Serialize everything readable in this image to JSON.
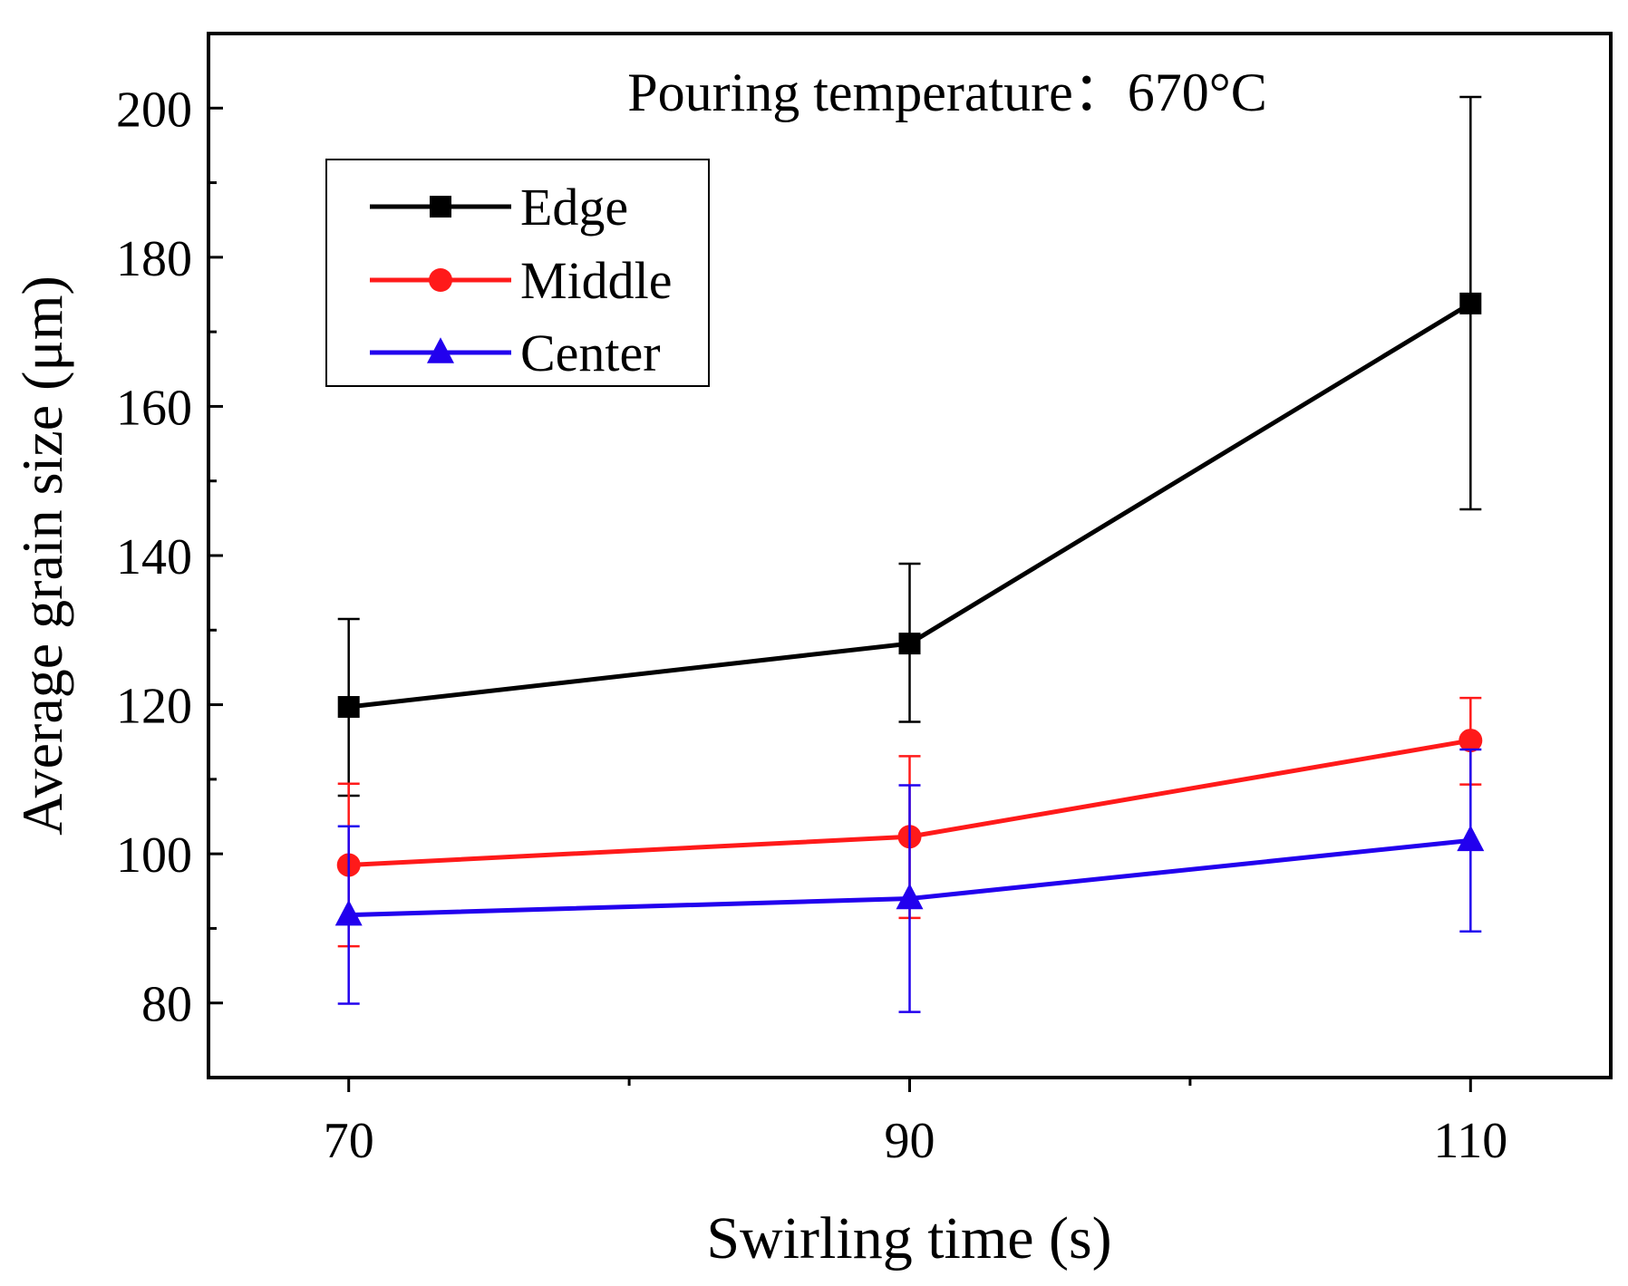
{
  "chart_data": {
    "type": "line",
    "title": "",
    "annotation": "Pouring temperature：670°C",
    "xlabel": "Swirling time (s)",
    "ylabel": "Average grain size (μm)",
    "x": [
      70,
      90,
      110
    ],
    "xlim": [
      65,
      115
    ],
    "ylim": [
      70,
      210
    ],
    "xticks": [
      70,
      90,
      110
    ],
    "yticks": [
      80,
      100,
      120,
      140,
      160,
      180,
      200
    ],
    "grid": false,
    "legend_position": "top-left",
    "series": [
      {
        "name": "Edge",
        "color": "#000000",
        "marker": "square",
        "values": [
          119.7,
          128.2,
          173.8
        ],
        "error_low": [
          107.8,
          117.7,
          146.2
        ],
        "error_high": [
          131.5,
          138.9,
          201.5
        ]
      },
      {
        "name": "Middle",
        "color": "#ff1a1a",
        "marker": "circle",
        "values": [
          98.5,
          102.3,
          115.2
        ],
        "error_low": [
          87.6,
          91.4,
          109.3
        ],
        "error_high": [
          109.4,
          113.1,
          120.9
        ]
      },
      {
        "name": "Center",
        "color": "#2200ee",
        "marker": "triangle",
        "values": [
          91.8,
          94.0,
          101.8
        ],
        "error_low": [
          79.9,
          78.8,
          89.6
        ],
        "error_high": [
          103.7,
          109.2,
          114.0
        ]
      }
    ]
  }
}
